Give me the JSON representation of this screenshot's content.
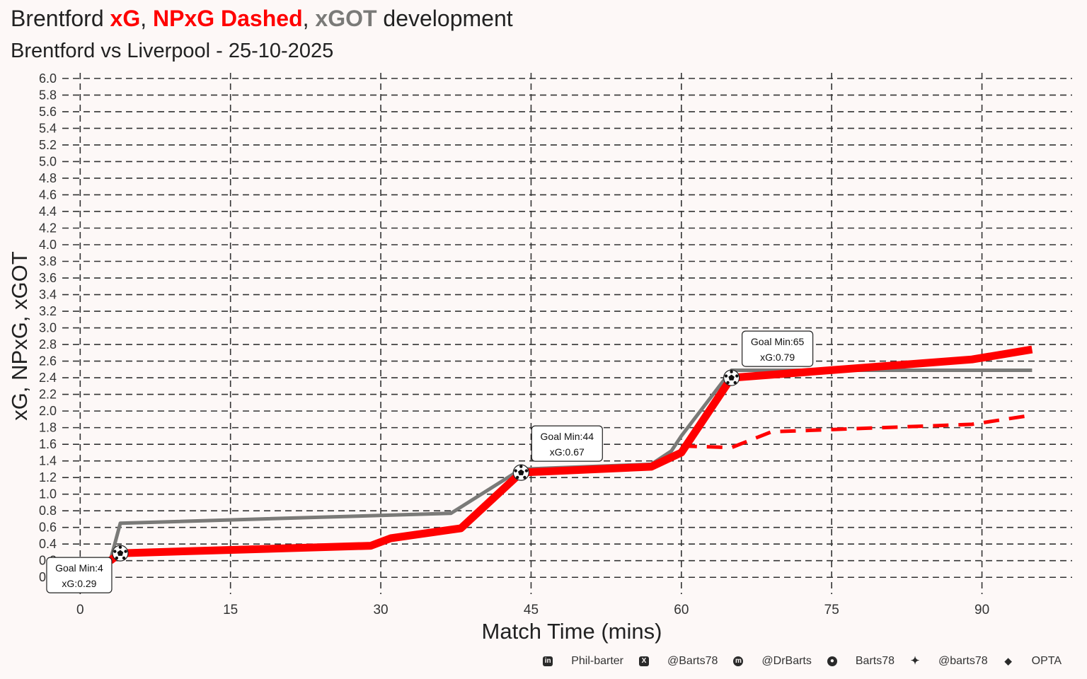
{
  "title": {
    "prefix": "Brentford ",
    "xg": "xG",
    "sep1": ", ",
    "npxg": "NPxG Dashed",
    "sep2": ", ",
    "xgot": "xGOT",
    "suffix": " development"
  },
  "subtitle": "Brentford vs Liverpool - 25-10-2025",
  "colors": {
    "xg": "#ff0000",
    "npxg": "#ff0000",
    "xgot": "#7a7a78",
    "background": "#fdf8f7",
    "grid": "#333333"
  },
  "chart_data": {
    "type": "line",
    "xlabel": "Match Time (mins)",
    "ylabel": "xG, NPxG, xGOT",
    "xlim": [
      -2,
      99
    ],
    "ylim": [
      -0.1,
      6.05
    ],
    "x_ticks": [
      0,
      15,
      30,
      45,
      60,
      75,
      90
    ],
    "x_tick_labels": [
      "0",
      "15",
      "30",
      "45",
      "60",
      "75",
      "90"
    ],
    "y_ticks": [
      0.0,
      0.2,
      0.4,
      0.6,
      0.8,
      1.0,
      1.2,
      1.4,
      1.6,
      1.8,
      2.0,
      2.2,
      2.4,
      2.6,
      2.8,
      3.0,
      3.2,
      3.4,
      3.6,
      3.8,
      4.0,
      4.2,
      4.4,
      4.6,
      4.8,
      5.0,
      5.2,
      5.4,
      5.6,
      5.8,
      6.0
    ],
    "y_tick_labels": [
      "0.0",
      "0.2",
      "0.4",
      "0.6",
      "0.8",
      "1.0",
      "1.2",
      "1.4",
      "1.6",
      "1.8",
      "2.0",
      "2.2",
      "2.4",
      "2.6",
      "2.8",
      "3.0",
      "3.2",
      "3.4",
      "3.6",
      "3.8",
      "4.0",
      "4.2",
      "4.4",
      "4.6",
      "4.8",
      "5.0",
      "5.2",
      "5.4",
      "5.6",
      "5.8",
      "6.0"
    ],
    "grid": true,
    "series": [
      {
        "key": "xgot",
        "style": "solid",
        "x": [
          3,
          4,
          37,
          44,
          57,
          59,
          60,
          65,
          95
        ],
        "y": [
          0.2,
          0.65,
          0.77,
          1.3,
          1.36,
          1.52,
          1.7,
          2.49,
          2.49
        ]
      },
      {
        "key": "xg",
        "style": "solid",
        "x": [
          3,
          4,
          29,
          31,
          38,
          44,
          57,
          60,
          65,
          89,
          95
        ],
        "y": [
          0.2,
          0.29,
          0.38,
          0.47,
          0.59,
          1.26,
          1.33,
          1.5,
          2.4,
          2.62,
          2.74
        ]
      },
      {
        "key": "npxg",
        "style": "dashed",
        "x": [
          60,
          65,
          69,
          89,
          95
        ],
        "y": [
          1.58,
          1.56,
          1.75,
          1.84,
          1.95
        ]
      }
    ],
    "annotations": [
      {
        "x": 4,
        "y": 0.29,
        "line1": "Goal Min:4",
        "line2": "xG:0.29",
        "placement": "below-left"
      },
      {
        "x": 44,
        "y": 1.26,
        "line1": "Goal Min:44",
        "line2": "xG:0.67",
        "placement": "above-right"
      },
      {
        "x": 65,
        "y": 2.4,
        "line1": "Goal Min:65",
        "line2": "xG:0.79",
        "placement": "above-right"
      }
    ]
  },
  "footer": {
    "linkedin": "Phil-barter",
    "x": "@Barts78",
    "mastodon": "@DrBarts",
    "github": "Barts78",
    "bluesky": "@barts78",
    "source": "OPTA"
  }
}
